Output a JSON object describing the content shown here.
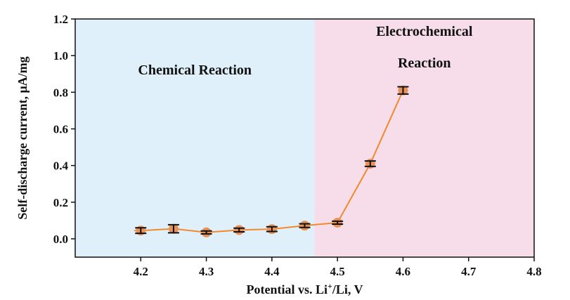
{
  "chart_data": {
    "type": "line",
    "xlabel_main": "Potential vs. Li",
    "xlabel_sup": "+",
    "xlabel_end": "/Li, V",
    "ylabel": "Self-discharge current, μA/mg",
    "xlim": [
      4.1,
      4.8
    ],
    "ylim": [
      -0.1,
      1.2
    ],
    "x_ticks": [
      "4.2",
      "4.3",
      "4.4",
      "4.5",
      "4.6",
      "4.7",
      "4.8"
    ],
    "y_ticks": [
      "0.0",
      "0.2",
      "0.4",
      "0.6",
      "0.8",
      "1.0",
      "1.2"
    ],
    "regions": [
      {
        "label_lines": [
          "Chemical Reaction"
        ],
        "x_start": 4.1,
        "x_end": 4.465,
        "color": "#dff0fa"
      },
      {
        "label_lines": [
          "Electrochemical",
          "Reaction"
        ],
        "x_start": 4.465,
        "x_end": 4.8,
        "color": "#f6dde9"
      }
    ],
    "series": [
      {
        "color": "#f08a2c",
        "marker_color": "#e8925a",
        "x": [
          4.2,
          4.25,
          4.3,
          4.35,
          4.4,
          4.45,
          4.5,
          4.55,
          4.6
        ],
        "y": [
          0.045,
          0.055,
          0.035,
          0.048,
          0.053,
          0.072,
          0.088,
          0.41,
          0.81
        ],
        "error": [
          0.015,
          0.022,
          0.008,
          0.01,
          0.013,
          0.01,
          0.008,
          0.015,
          0.02
        ],
        "line_start": [
          4.19,
          0.045
        ]
      }
    ]
  }
}
